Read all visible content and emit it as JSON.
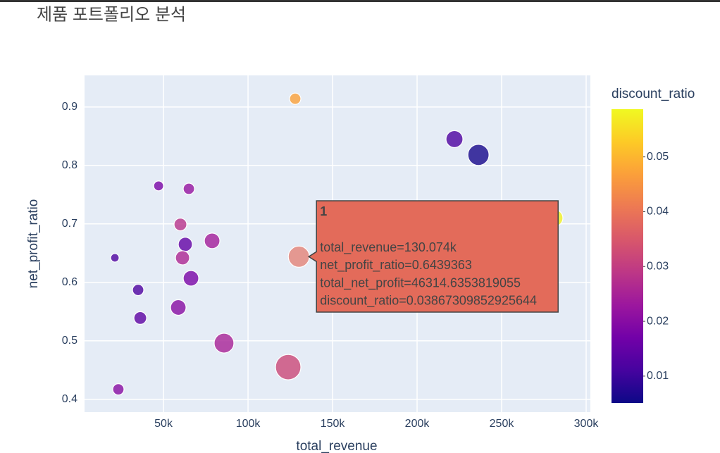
{
  "chart_data": {
    "type": "scatter",
    "title": "제품 포트폴리오 분석",
    "x_label": "total_revenue",
    "y_label": "net_profit_ratio",
    "x": [
      127900,
      222100,
      236300,
      281250,
      47100,
      65000,
      60000,
      78750,
      62900,
      130074,
      21250,
      61250,
      35000,
      66250,
      58750,
      36250,
      85800,
      123750,
      23300
    ],
    "y": [
      0.914,
      0.845,
      0.818,
      0.71,
      0.765,
      0.76,
      0.699,
      0.671,
      0.665,
      0.6439363,
      0.642,
      0.642,
      0.587,
      0.607,
      0.557,
      0.539,
      0.496,
      0.455,
      0.417
    ],
    "sizes": [
      13170,
      29640,
      46310,
      29640,
      10090,
      13170,
      16670,
      24900,
      20580,
      46314.6353819055,
      7410,
      20580,
      13170,
      24900,
      24900,
      16670,
      40340,
      66690,
      13170
    ],
    "colors": [
      0.047,
      0.012,
      0.006,
      0.058,
      0.018,
      0.022,
      0.028,
      0.024,
      0.015,
      0.03867309852925644,
      0.012,
      0.026,
      0.012,
      0.018,
      0.02,
      0.014,
      0.025,
      0.032,
      0.02
    ],
    "xlim": [
      3300,
      302500
    ],
    "ylim": [
      0.378,
      0.954
    ],
    "xticks": [
      {
        "value": 50000,
        "label": "50k"
      },
      {
        "value": 100000,
        "label": "100k"
      },
      {
        "value": 150000,
        "label": "150k"
      },
      {
        "value": 200000,
        "label": "200k"
      },
      {
        "value": 250000,
        "label": "250k"
      },
      {
        "value": 300000,
        "label": "300k"
      }
    ],
    "yticks": [
      0.4,
      0.5,
      0.6,
      0.7,
      0.8,
      0.9
    ],
    "grid": true,
    "colorbar": {
      "title": "discount_ratio",
      "lim": [
        0.0051,
        0.0587
      ],
      "ticks": [
        0.01,
        0.02,
        0.03,
        0.04,
        0.05
      ],
      "colorscale": [
        "#0d0887",
        "#46039f",
        "#7201a8",
        "#9c179e",
        "#bd3786",
        "#d8576b",
        "#ed7953",
        "#fb9f3a",
        "#fdca26",
        "#f0f921"
      ]
    },
    "hover": {
      "point": 9,
      "color": "#e36b5a",
      "title": "1",
      "lines": [
        "total_revenue=130.074k",
        "net_profit_ratio=0.6439363",
        "total_net_profit=46314.6353819055",
        "discount_ratio=0.03867309852925644"
      ]
    }
  }
}
